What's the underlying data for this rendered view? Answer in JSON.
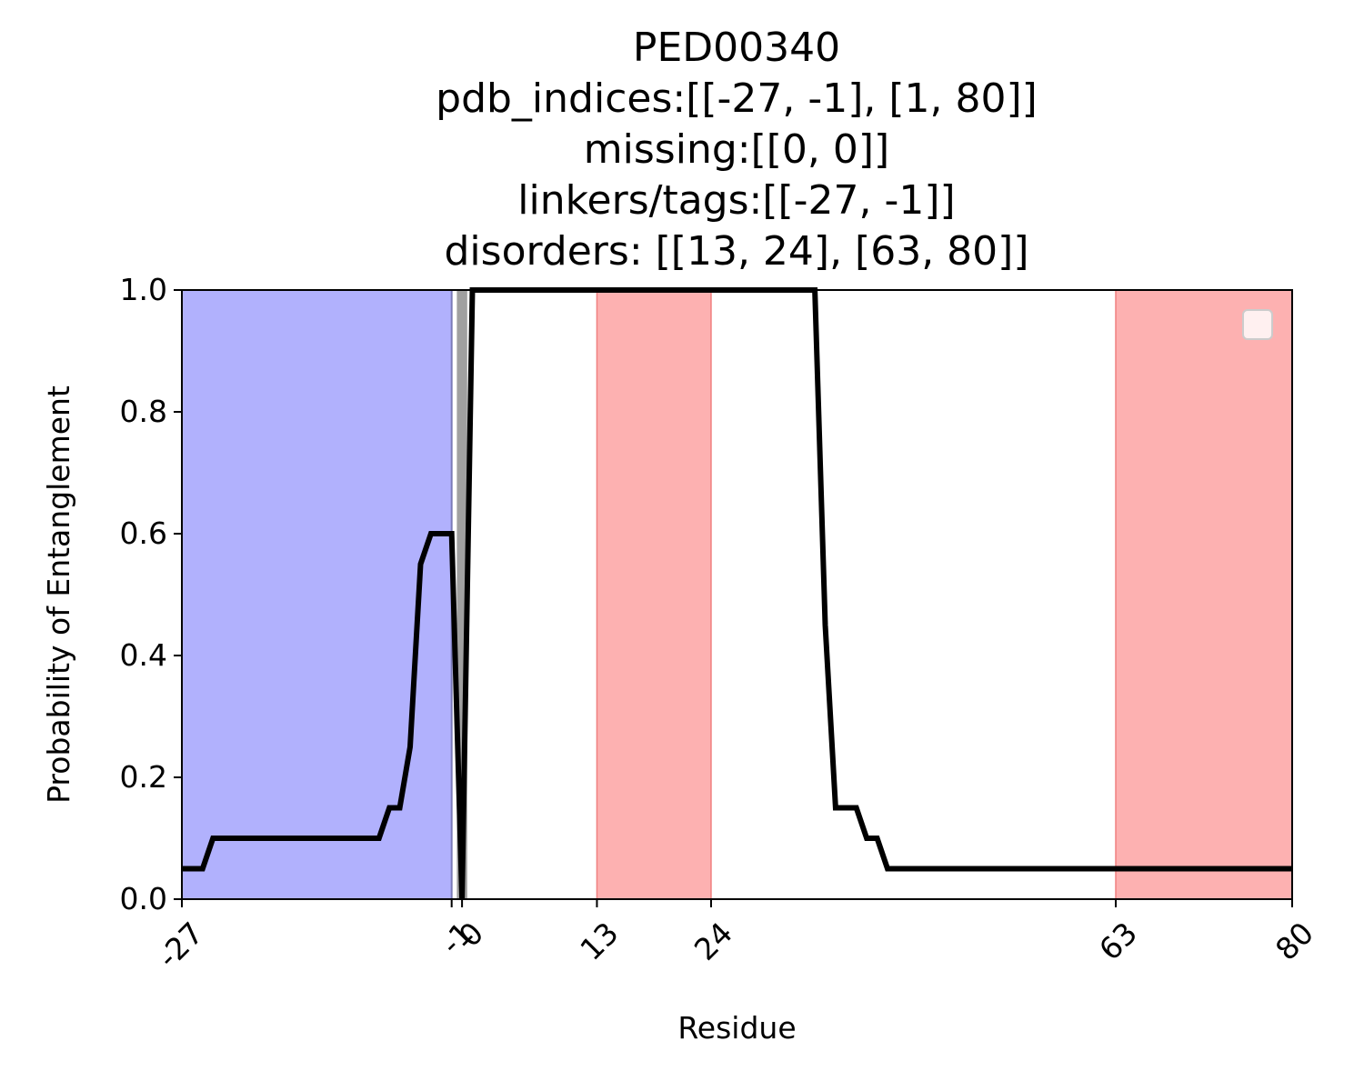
{
  "chart_data": {
    "type": "line",
    "title_lines": [
      "PED00340",
      "pdb_indices:[[-27, -1], [1, 80]]",
      "missing:[[0, 0]]",
      "linkers/tags:[[-27, -1]]",
      "disorders: [[13, 24], [63, 80]]"
    ],
    "xlabel": "Residue",
    "ylabel": "Probability of Entanglement",
    "xlim": [
      -27,
      80
    ],
    "ylim": [
      0,
      1.0
    ],
    "xticks": [
      -27,
      -1,
      0,
      13,
      24,
      63,
      80
    ],
    "yticks": [
      0.0,
      0.2,
      0.4,
      0.6,
      0.8,
      1.0
    ],
    "ytick_labels": [
      "0.0",
      "0.2",
      "0.4",
      "0.6",
      "0.8",
      "1.0"
    ],
    "bands": [
      {
        "type": "linker",
        "x0": -27,
        "x1": -1,
        "color": "#b1b1fd"
      },
      {
        "type": "missing",
        "x0": -0.5,
        "x1": 0.5,
        "color": "#a0a0a0"
      },
      {
        "type": "disorder",
        "x0": 13,
        "x1": 24,
        "color": "#fdb1b1"
      },
      {
        "type": "disorder",
        "x0": 63,
        "x1": 80,
        "color": "#fdb1b1"
      }
    ],
    "series": [
      {
        "color": "#000000",
        "x": [
          -27,
          -25,
          -24,
          -22,
          -20,
          -18,
          -16,
          -14,
          -12,
          -10,
          -8,
          -7,
          -6,
          -5,
          -4,
          -3,
          -2,
          -1.5,
          -1,
          0,
          1,
          2,
          5,
          10,
          15,
          20,
          25,
          30,
          34,
          35,
          36,
          37,
          38,
          39,
          40,
          41,
          42,
          45,
          50,
          55,
          60,
          65,
          70,
          75,
          80
        ],
        "y": [
          0.05,
          0.05,
          0.1,
          0.1,
          0.1,
          0.1,
          0.1,
          0.1,
          0.1,
          0.1,
          0.1,
          0.15,
          0.15,
          0.25,
          0.55,
          0.6,
          0.6,
          0.6,
          0.6,
          0.0,
          1.0,
          1.0,
          1.0,
          1.0,
          1.0,
          1.0,
          1.0,
          1.0,
          1.0,
          0.45,
          0.15,
          0.15,
          0.15,
          0.1,
          0.1,
          0.05,
          0.05,
          0.05,
          0.05,
          0.05,
          0.05,
          0.05,
          0.05,
          0.05,
          0.05
        ]
      }
    ],
    "legend": {
      "placement": "top-right",
      "entries": []
    }
  }
}
